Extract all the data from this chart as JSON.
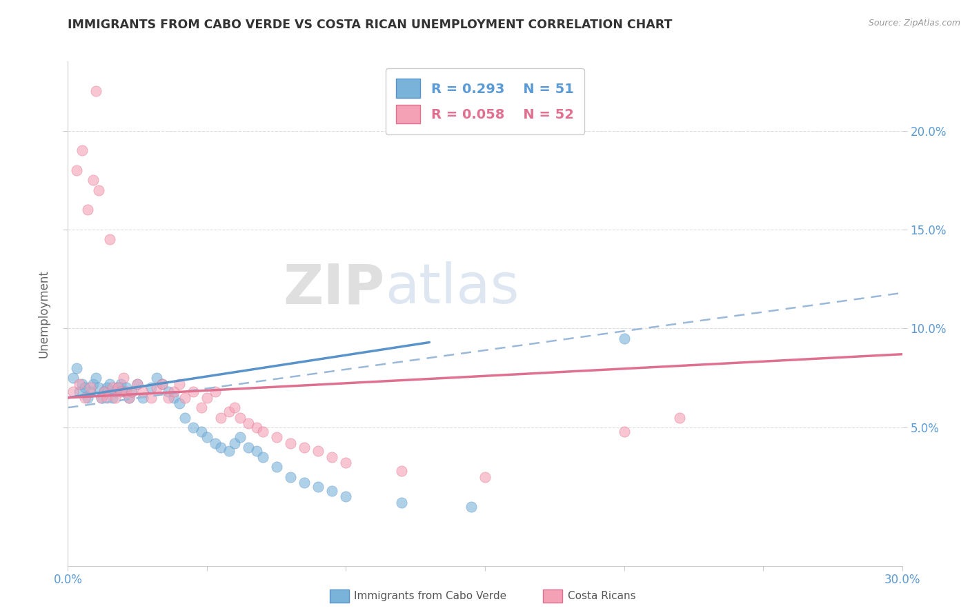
{
  "title": "IMMIGRANTS FROM CABO VERDE VS COSTA RICAN UNEMPLOYMENT CORRELATION CHART",
  "source": "Source: ZipAtlas.com",
  "ylabel": "Unemployment",
  "right_yticks": [
    0.05,
    0.1,
    0.15,
    0.2
  ],
  "right_yticklabels": [
    "5.0%",
    "10.0%",
    "15.0%",
    "20.0%"
  ],
  "xlim": [
    0.0,
    0.3
  ],
  "ylim": [
    -0.02,
    0.235
  ],
  "series1_color": "#7ab3d9",
  "series1_edge": "#5a93c9",
  "series2_color": "#f4a0b5",
  "series2_edge": "#e07090",
  "series1_label": "Immigrants from Cabo Verde",
  "series2_label": "Costa Ricans",
  "series1_R": "0.293",
  "series1_N": "51",
  "series2_R": "0.058",
  "series2_N": "52",
  "watermark_zip": "ZIP",
  "watermark_atlas": "atlas",
  "trendline1_x": [
    0.0,
    0.13
  ],
  "trendline1_y": [
    0.065,
    0.093
  ],
  "trendline2_x": [
    0.0,
    0.3
  ],
  "trendline2_y": [
    0.065,
    0.087
  ],
  "dashed_line_x": [
    0.0,
    0.3
  ],
  "dashed_line_y": [
    0.06,
    0.118
  ],
  "scatter1_x": [
    0.002,
    0.003,
    0.004,
    0.005,
    0.006,
    0.007,
    0.008,
    0.009,
    0.01,
    0.011,
    0.012,
    0.013,
    0.014,
    0.015,
    0.016,
    0.017,
    0.018,
    0.019,
    0.02,
    0.021,
    0.022,
    0.023,
    0.025,
    0.027,
    0.03,
    0.032,
    0.034,
    0.036,
    0.038,
    0.04,
    0.042,
    0.045,
    0.048,
    0.05,
    0.053,
    0.055,
    0.058,
    0.06,
    0.062,
    0.065,
    0.068,
    0.07,
    0.075,
    0.08,
    0.085,
    0.09,
    0.095,
    0.1,
    0.12,
    0.145,
    0.2
  ],
  "scatter1_y": [
    0.075,
    0.08,
    0.068,
    0.072,
    0.07,
    0.065,
    0.068,
    0.072,
    0.075,
    0.07,
    0.065,
    0.068,
    0.07,
    0.072,
    0.065,
    0.068,
    0.07,
    0.072,
    0.068,
    0.07,
    0.065,
    0.068,
    0.072,
    0.065,
    0.07,
    0.075,
    0.072,
    0.068,
    0.065,
    0.062,
    0.055,
    0.05,
    0.048,
    0.045,
    0.042,
    0.04,
    0.038,
    0.042,
    0.045,
    0.04,
    0.038,
    0.035,
    0.03,
    0.025,
    0.022,
    0.02,
    0.018,
    0.015,
    0.012,
    0.01,
    0.095
  ],
  "scatter2_x": [
    0.002,
    0.003,
    0.004,
    0.005,
    0.006,
    0.007,
    0.008,
    0.009,
    0.01,
    0.011,
    0.012,
    0.013,
    0.014,
    0.015,
    0.016,
    0.017,
    0.018,
    0.019,
    0.02,
    0.021,
    0.022,
    0.023,
    0.025,
    0.027,
    0.03,
    0.032,
    0.034,
    0.036,
    0.038,
    0.04,
    0.042,
    0.045,
    0.048,
    0.05,
    0.053,
    0.055,
    0.058,
    0.06,
    0.062,
    0.065,
    0.068,
    0.07,
    0.075,
    0.08,
    0.085,
    0.09,
    0.095,
    0.1,
    0.12,
    0.15,
    0.2,
    0.22
  ],
  "scatter2_y": [
    0.068,
    0.18,
    0.072,
    0.19,
    0.065,
    0.16,
    0.07,
    0.175,
    0.22,
    0.17,
    0.065,
    0.068,
    0.065,
    0.145,
    0.07,
    0.065,
    0.07,
    0.068,
    0.075,
    0.068,
    0.065,
    0.068,
    0.072,
    0.068,
    0.065,
    0.07,
    0.072,
    0.065,
    0.068,
    0.072,
    0.065,
    0.068,
    0.06,
    0.065,
    0.068,
    0.055,
    0.058,
    0.06,
    0.055,
    0.052,
    0.05,
    0.048,
    0.045,
    0.042,
    0.04,
    0.038,
    0.035,
    0.032,
    0.028,
    0.025,
    0.048,
    0.055
  ]
}
